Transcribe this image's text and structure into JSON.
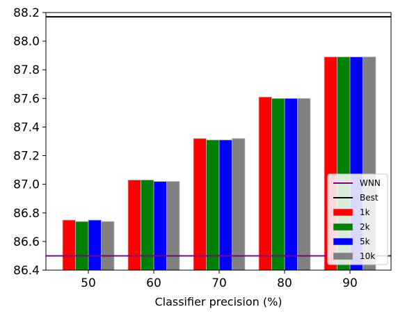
{
  "chart_data": {
    "type": "bar",
    "xlabel": "Classifier precision (%)",
    "ylabel": "",
    "categories": [
      "50",
      "60",
      "70",
      "80",
      "90"
    ],
    "ylim": [
      86.4,
      88.2
    ],
    "yticks": [
      "86.4",
      "86.6",
      "86.8",
      "87.0",
      "87.2",
      "87.4",
      "87.6",
      "87.8",
      "88.0",
      "88.2"
    ],
    "series": [
      {
        "name": "1k",
        "color": "#ff0000",
        "values": [
          86.75,
          87.03,
          87.32,
          87.61,
          87.89
        ]
      },
      {
        "name": "2k",
        "color": "#008000",
        "values": [
          86.74,
          87.03,
          87.31,
          87.6,
          87.89
        ]
      },
      {
        "name": "5k",
        "color": "#0000ff",
        "values": [
          86.75,
          87.02,
          87.31,
          87.6,
          87.89
        ]
      },
      {
        "name": "10k",
        "color": "#808080",
        "values": [
          86.74,
          87.02,
          87.32,
          87.6,
          87.89
        ]
      }
    ],
    "hlines": [
      {
        "name": "WNN",
        "color": "#800080",
        "value": 86.5
      },
      {
        "name": "Best",
        "color": "#000000",
        "value": 88.17
      }
    ],
    "legend": {
      "position": "lower-right",
      "order": [
        "WNN",
        "Best",
        "1k",
        "2k",
        "5k",
        "10k"
      ]
    },
    "grid": false
  }
}
